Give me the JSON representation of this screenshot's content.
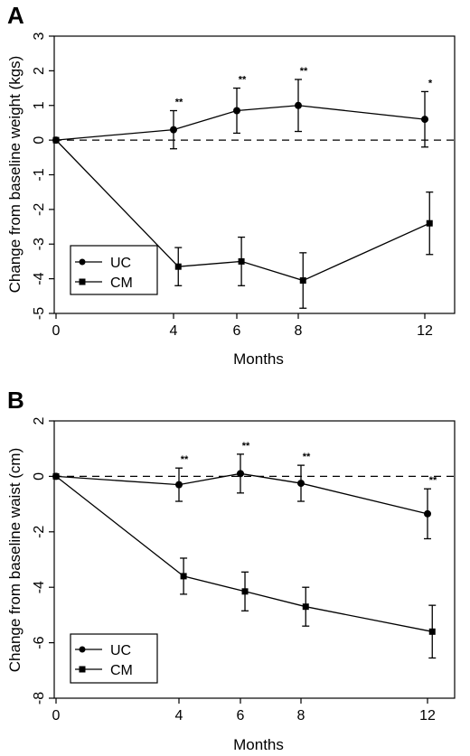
{
  "panels": [
    {
      "letter": "A",
      "legend": [
        {
          "label": "UC",
          "marker": "circle"
        },
        {
          "label": "CM",
          "marker": "square"
        }
      ],
      "ylabel": "Change from baseline weight (kgs)",
      "xlabel": "Months",
      "xticks": [
        "0",
        "4",
        "6",
        "8",
        "12"
      ],
      "yticks": [
        "-5",
        "-4",
        "-3",
        "-2",
        "-1",
        "0",
        "1",
        "2",
        "3"
      ]
    },
    {
      "letter": "B",
      "legend": [
        {
          "label": "UC",
          "marker": "circle"
        },
        {
          "label": "CM",
          "marker": "square"
        }
      ],
      "ylabel": "Change from baseline waist (cm)",
      "xlabel": "Months",
      "xticks": [
        "0",
        "4",
        "6",
        "8",
        "12"
      ],
      "yticks": [
        "-8",
        "-6",
        "-4",
        "-2",
        "0",
        "2"
      ]
    }
  ],
  "chart_data": [
    {
      "type": "line",
      "title": "",
      "xlabel": "Months",
      "ylabel": "Change from baseline weight (kgs)",
      "ylim": [
        -5,
        3
      ],
      "xlim": [
        0,
        13
      ],
      "x": [
        0,
        4,
        6,
        8,
        12
      ],
      "reference_line": {
        "y": 0,
        "style": "dashed"
      },
      "grid": false,
      "legend_position": "lower-left",
      "series": [
        {
          "name": "UC",
          "marker": "circle",
          "x": [
            0,
            4,
            6,
            8,
            12
          ],
          "values": [
            0,
            0.3,
            0.85,
            1.0,
            0.6
          ],
          "error": [
            0,
            0.55,
            0.65,
            0.75,
            0.8
          ],
          "significance": [
            "",
            "**",
            "**",
            "**",
            "*"
          ]
        },
        {
          "name": "CM",
          "marker": "square",
          "x": [
            0,
            4.15,
            6.15,
            8.15,
            12.15
          ],
          "values": [
            0,
            -3.65,
            -3.5,
            -4.05,
            -2.4
          ],
          "error": [
            0,
            0.55,
            0.7,
            0.8,
            0.9
          ],
          "significance": [
            "",
            "",
            "",
            "",
            ""
          ]
        }
      ]
    },
    {
      "type": "line",
      "title": "",
      "xlabel": "Months",
      "ylabel": "Change from baseline waist (cm)",
      "ylim": [
        -8,
        2
      ],
      "xlim": [
        0,
        13
      ],
      "x": [
        0,
        4,
        6,
        8,
        12
      ],
      "reference_line": {
        "y": 0,
        "style": "dashed"
      },
      "grid": false,
      "legend_position": "lower-left",
      "series": [
        {
          "name": "UC",
          "marker": "circle",
          "x": [
            0,
            4,
            6,
            8,
            12
          ],
          "values": [
            0,
            -0.3,
            0.1,
            -0.25,
            -1.35
          ],
          "error": [
            0,
            0.6,
            0.7,
            0.65,
            0.9
          ],
          "significance": [
            "",
            "**",
            "**",
            "**",
            "**"
          ]
        },
        {
          "name": "CM",
          "marker": "square",
          "x": [
            0,
            4.15,
            6.15,
            8.15,
            12.15
          ],
          "values": [
            0,
            -3.6,
            -4.15,
            -4.7,
            -5.6
          ],
          "error": [
            0,
            0.65,
            0.7,
            0.7,
            0.95
          ],
          "significance": [
            "",
            "",
            "",
            "",
            ""
          ]
        }
      ]
    }
  ]
}
